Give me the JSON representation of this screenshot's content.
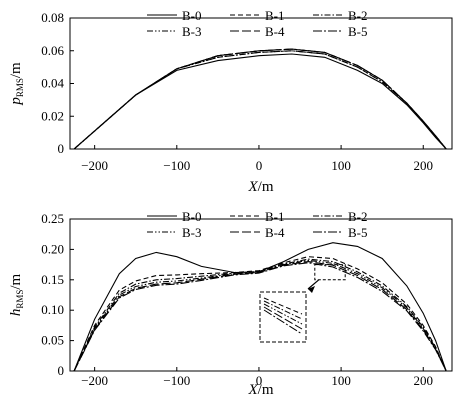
{
  "chart_data": [
    {
      "type": "line",
      "xlabel": {
        "var": "X",
        "unit": "/m"
      },
      "ylabel": {
        "var": "p",
        "sub": "RMS",
        "unit": "/m"
      },
      "xlim": [
        -230,
        235
      ],
      "ylim": [
        0,
        0.08
      ],
      "xticks": [
        -200,
        -100,
        0,
        100,
        200
      ],
      "yticks": [
        0,
        0.02,
        0.04,
        0.06,
        0.08
      ],
      "xtick_labels": [
        "−200",
        "−100",
        "0",
        "100",
        "200"
      ],
      "ytick_labels": [
        "0",
        "0.02",
        "0.04",
        "0.06",
        "0.08"
      ],
      "legend": {
        "placement": "top",
        "columns": 3,
        "labels": [
          "B-0",
          "B-1",
          "B-2",
          "B-3",
          "B-4",
          "B-5"
        ]
      },
      "series": [
        {
          "name": "B-0",
          "style": "solid",
          "x": [
            -225,
            -200,
            -150,
            -100,
            -50,
            0,
            40,
            80,
            120,
            150,
            180,
            200,
            215,
            228
          ],
          "y": [
            0,
            0.011,
            0.033,
            0.048,
            0.054,
            0.057,
            0.058,
            0.056,
            0.048,
            0.04,
            0.027,
            0.016,
            0.007,
            0
          ]
        },
        {
          "name": "B-1",
          "style": "dashed",
          "x": [
            -225,
            -200,
            -150,
            -100,
            -50,
            0,
            40,
            80,
            120,
            150,
            180,
            200,
            215,
            228
          ],
          "y": [
            0,
            0.011,
            0.033,
            0.049,
            0.057,
            0.06,
            0.061,
            0.059,
            0.051,
            0.042,
            0.028,
            0.017,
            0.008,
            0
          ]
        },
        {
          "name": "B-2",
          "style": "dashdot",
          "x": [
            -225,
            -200,
            -150,
            -100,
            -50,
            0,
            40,
            80,
            120,
            150,
            180,
            200,
            215,
            228
          ],
          "y": [
            0,
            0.011,
            0.033,
            0.049,
            0.056,
            0.059,
            0.06,
            0.058,
            0.05,
            0.041,
            0.028,
            0.017,
            0.008,
            0
          ]
        },
        {
          "name": "B-3",
          "style": "dashdotdot",
          "x": [
            -225,
            -200,
            -150,
            -100,
            -50,
            0,
            40,
            80,
            120,
            150,
            180,
            200,
            215,
            228
          ],
          "y": [
            0,
            0.011,
            0.033,
            0.049,
            0.056,
            0.059,
            0.06,
            0.058,
            0.05,
            0.041,
            0.028,
            0.017,
            0.008,
            0
          ]
        },
        {
          "name": "B-4",
          "style": "longdash",
          "x": [
            -225,
            -200,
            -150,
            -100,
            -50,
            0,
            40,
            80,
            120,
            150,
            180,
            200,
            215,
            228
          ],
          "y": [
            0,
            0.011,
            0.033,
            0.049,
            0.057,
            0.06,
            0.061,
            0.059,
            0.051,
            0.042,
            0.028,
            0.017,
            0.008,
            0
          ]
        },
        {
          "name": "B-5",
          "style": "longdashdot",
          "x": [
            -225,
            -200,
            -150,
            -100,
            -50,
            0,
            40,
            80,
            120,
            150,
            180,
            200,
            215,
            228
          ],
          "y": [
            0,
            0.011,
            0.033,
            0.049,
            0.057,
            0.06,
            0.061,
            0.059,
            0.051,
            0.042,
            0.028,
            0.017,
            0.008,
            0
          ]
        }
      ]
    },
    {
      "type": "line",
      "xlabel": {
        "var": "X",
        "unit": "/m"
      },
      "ylabel": {
        "var": "h",
        "sub": "RMS",
        "unit": "/m"
      },
      "xlim": [
        -230,
        235
      ],
      "ylim": [
        0,
        0.25
      ],
      "xticks": [
        -200,
        -100,
        0,
        100,
        200
      ],
      "yticks": [
        0,
        0.05,
        0.1,
        0.15,
        0.2,
        0.25
      ],
      "xtick_labels": [
        "−200",
        "−100",
        "0",
        "100",
        "200"
      ],
      "ytick_labels": [
        "0",
        "0.05",
        "0.10",
        "0.15",
        "0.20",
        "0.25"
      ],
      "legend": {
        "placement": "top",
        "columns": 3,
        "labels": [
          "B-0",
          "B-1",
          "B-2",
          "B-3",
          "B-4",
          "B-5"
        ]
      },
      "inset": {
        "note": "zoomed view of curves near X≈80–100",
        "x_range": [
          68,
          105
        ],
        "y_range": [
          0.15,
          0.175
        ]
      },
      "series": [
        {
          "name": "B-0",
          "style": "solid",
          "x": [
            -225,
            -200,
            -170,
            -150,
            -125,
            -100,
            -70,
            -30,
            0,
            30,
            60,
            90,
            120,
            150,
            180,
            200,
            215,
            228
          ],
          "y": [
            0,
            0.085,
            0.16,
            0.185,
            0.195,
            0.188,
            0.172,
            0.162,
            0.163,
            0.18,
            0.2,
            0.211,
            0.205,
            0.185,
            0.14,
            0.095,
            0.05,
            0
          ]
        },
        {
          "name": "B-1",
          "style": "dashed",
          "x": [
            -225,
            -200,
            -170,
            -150,
            -125,
            -100,
            -70,
            -30,
            0,
            30,
            60,
            90,
            120,
            150,
            180,
            200,
            215,
            228
          ],
          "y": [
            0,
            0.075,
            0.133,
            0.148,
            0.157,
            0.158,
            0.16,
            0.162,
            0.165,
            0.178,
            0.188,
            0.185,
            0.168,
            0.145,
            0.11,
            0.075,
            0.04,
            0
          ]
        },
        {
          "name": "B-2",
          "style": "dashdot",
          "x": [
            -225,
            -200,
            -170,
            -150,
            -125,
            -100,
            -70,
            -30,
            0,
            30,
            60,
            90,
            120,
            150,
            180,
            200,
            215,
            228
          ],
          "y": [
            0,
            0.072,
            0.128,
            0.143,
            0.15,
            0.152,
            0.156,
            0.161,
            0.164,
            0.176,
            0.184,
            0.18,
            0.163,
            0.14,
            0.106,
            0.072,
            0.038,
            0
          ]
        },
        {
          "name": "B-3",
          "style": "dashdotdot",
          "x": [
            -225,
            -200,
            -170,
            -150,
            -125,
            -100,
            -70,
            -30,
            0,
            30,
            60,
            90,
            120,
            150,
            180,
            200,
            215,
            228
          ],
          "y": [
            0,
            0.07,
            0.125,
            0.139,
            0.146,
            0.148,
            0.153,
            0.16,
            0.163,
            0.175,
            0.182,
            0.177,
            0.16,
            0.137,
            0.104,
            0.07,
            0.037,
            0
          ]
        },
        {
          "name": "B-4",
          "style": "longdash",
          "x": [
            -225,
            -200,
            -170,
            -150,
            -125,
            -100,
            -70,
            -30,
            0,
            30,
            60,
            90,
            120,
            150,
            180,
            200,
            215,
            228
          ],
          "y": [
            0,
            0.068,
            0.122,
            0.136,
            0.143,
            0.145,
            0.151,
            0.159,
            0.162,
            0.174,
            0.18,
            0.174,
            0.157,
            0.134,
            0.101,
            0.068,
            0.036,
            0
          ]
        },
        {
          "name": "B-5",
          "style": "longdashdot",
          "x": [
            -225,
            -200,
            -170,
            -150,
            -125,
            -100,
            -70,
            -30,
            0,
            30,
            60,
            90,
            120,
            150,
            180,
            200,
            215,
            228
          ],
          "y": [
            0,
            0.067,
            0.12,
            0.134,
            0.141,
            0.143,
            0.149,
            0.158,
            0.161,
            0.173,
            0.178,
            0.171,
            0.154,
            0.131,
            0.099,
            0.066,
            0.035,
            0
          ]
        }
      ]
    }
  ]
}
